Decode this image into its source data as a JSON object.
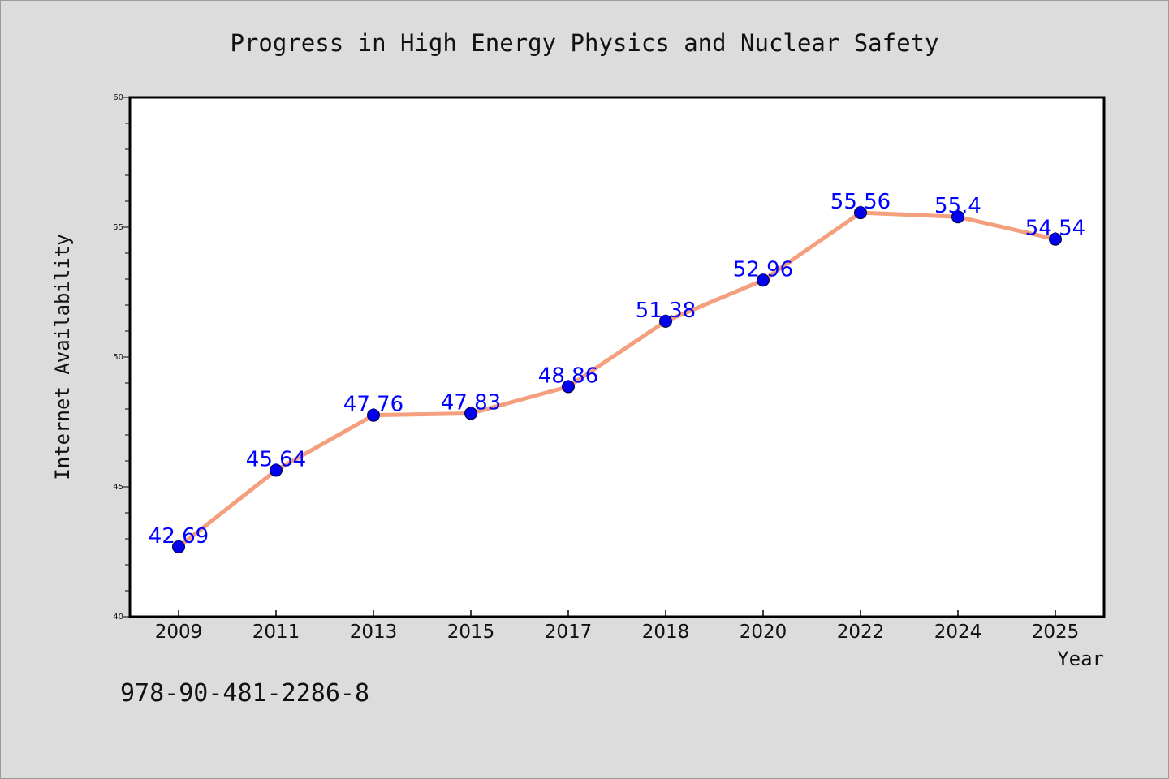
{
  "chart_data": {
    "type": "line",
    "title": "Progress in High Energy Physics and Nuclear Safety",
    "xlabel": "Year",
    "ylabel": "Internet Availability",
    "categories": [
      "2009",
      "2011",
      "2013",
      "2015",
      "2017",
      "2018",
      "2020",
      "2022",
      "2024",
      "2025"
    ],
    "series": [
      {
        "values": [
          42.69,
          45.64,
          47.76,
          47.83,
          48.86,
          51.38,
          52.96,
          55.56,
          55.4,
          54.54
        ],
        "labels": [
          "42.69",
          "45.64",
          "47.76",
          "47.83",
          "48.86",
          "51.38",
          "52.96",
          "55.56",
          "55.4",
          "54.54"
        ],
        "line_color": "#f4a07e",
        "marker_color": "#0000ee",
        "label_color": "#0000ff"
      }
    ],
    "ylim": [
      40,
      60
    ],
    "yticks": [
      40,
      45,
      50,
      55,
      60
    ],
    "grid": false,
    "legend": "none"
  },
  "footer_text": "978-90-481-2286-8"
}
